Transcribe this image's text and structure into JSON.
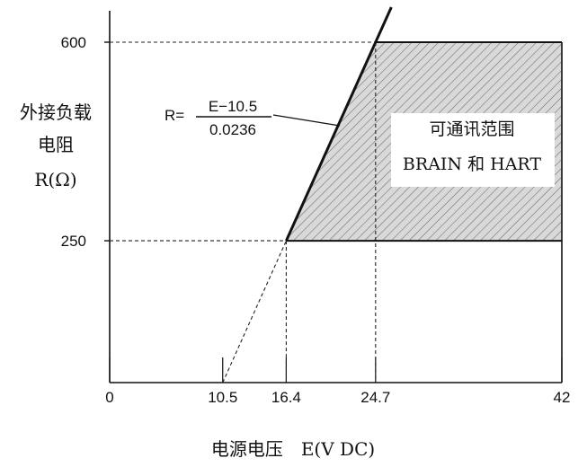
{
  "chart_data": {
    "type": "area",
    "xlabel": "电源电压　E(V DC)",
    "ylabel_lines": [
      "外接负载",
      "电阻",
      "R(Ω)"
    ],
    "x_ticks": [
      {
        "value": 0,
        "label": "0"
      },
      {
        "value": 10.5,
        "label": "10.5"
      },
      {
        "value": 16.4,
        "label": "16.4"
      },
      {
        "value": 24.7,
        "label": "24.7"
      },
      {
        "value": 42,
        "label": "42"
      }
    ],
    "y_ticks": [
      {
        "value": 250,
        "label": "250"
      },
      {
        "value": 600,
        "label": "600"
      }
    ],
    "xlim": [
      0,
      42
    ],
    "ylim": [
      0,
      600
    ],
    "load_line": {
      "formula_lhs": "R=",
      "numerator": "E−10.5",
      "denominator": "0.0236",
      "points": [
        {
          "x": 10.5,
          "y": 0
        },
        {
          "x": 16.4,
          "y": 250
        },
        {
          "x": 24.7,
          "y": 600
        }
      ]
    },
    "region": {
      "label_lines": [
        "可通讯范围",
        "BRAIN 和 HART"
      ],
      "polygon": [
        {
          "x": 16.4,
          "y": 250
        },
        {
          "x": 24.7,
          "y": 600
        },
        {
          "x": 42,
          "y": 600
        },
        {
          "x": 42,
          "y": 250
        }
      ]
    },
    "grid": false
  }
}
